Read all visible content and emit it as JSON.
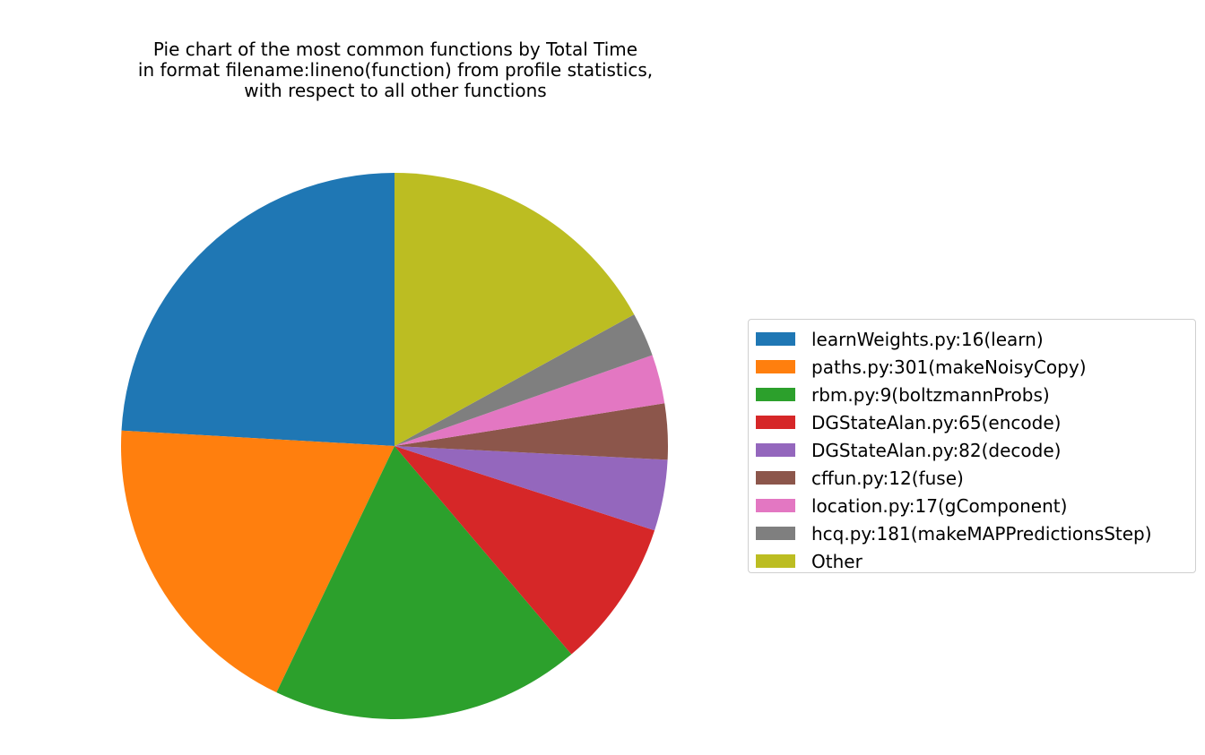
{
  "chart_data": {
    "type": "pie",
    "title_lines": [
      "Pie chart of the most common functions by Total Time",
      "in format filename:lineno(function) from profile statistics,",
      "with respect to all other functions"
    ],
    "start_angle_deg": 90,
    "direction": "counterclockwise",
    "legend_placement": "right",
    "slices": [
      {
        "label": "learnWeights.py:16(learn)",
        "value": 24.1,
        "color": "#1f77b4"
      },
      {
        "label": "paths.py:301(makeNoisyCopy)",
        "value": 18.8,
        "color": "#ff7f0e"
      },
      {
        "label": "rbm.py:9(boltzmannProbs)",
        "value": 18.3,
        "color": "#2ca02c"
      },
      {
        "label": "DGStateAlan.py:65(encode)",
        "value": 8.8,
        "color": "#d62728"
      },
      {
        "label": "DGStateAlan.py:82(decode)",
        "value": 4.2,
        "color": "#9467bd"
      },
      {
        "label": "cffun.py:12(fuse)",
        "value": 3.3,
        "color": "#8c564b"
      },
      {
        "label": "location.py:17(gComponent)",
        "value": 2.9,
        "color": "#e377c2"
      },
      {
        "label": "hcq.py:181(makeMAPPredictionsStep)",
        "value": 2.6,
        "color": "#7f7f7f"
      },
      {
        "label": "Other",
        "value": 17.0,
        "color": "#bcbd22"
      }
    ]
  }
}
